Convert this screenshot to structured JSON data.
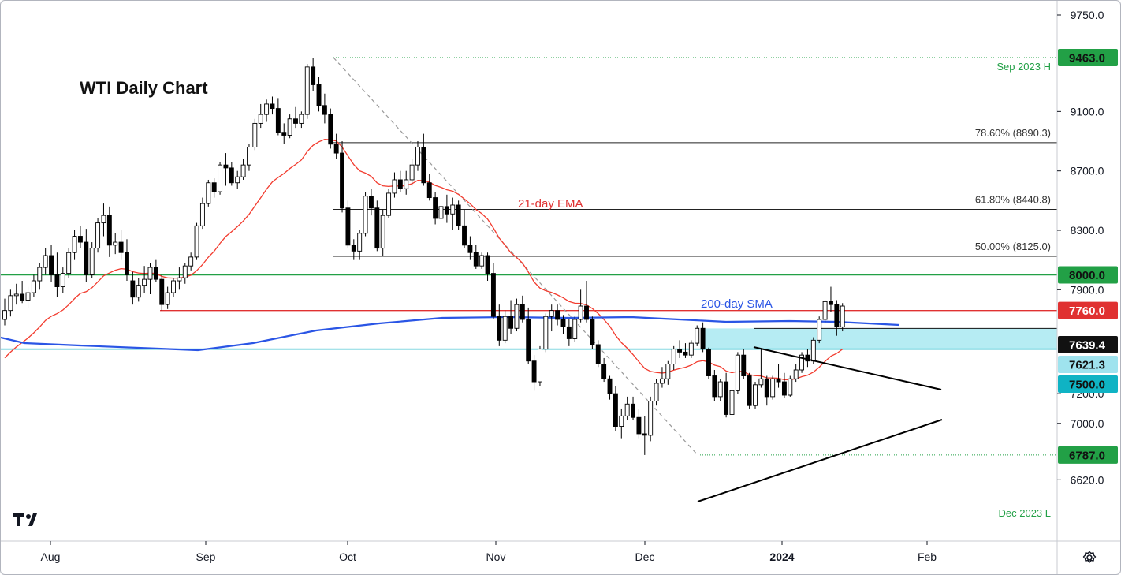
{
  "chart_data": {
    "type": "candlestick",
    "title": "WTI Daily Chart",
    "y_axis": {
      "range": [
        6520,
        9860
      ],
      "ticks": [
        9750.0,
        9100.0,
        8700.0,
        8300.0,
        7900.0,
        7200.0,
        7000.0,
        6620.0
      ]
    },
    "x_axis": {
      "ticks": [
        "Aug",
        "Sep",
        "Oct",
        "Nov",
        "Dec",
        "2024",
        "Feb"
      ]
    },
    "horizontal_levels": [
      {
        "value": 9463.0,
        "label": "9463.0",
        "note": "Sep 2023 H",
        "color": "#22a046"
      },
      {
        "value": 8000.0,
        "label": "8000.0",
        "color": "#22a046"
      },
      {
        "value": 7760.0,
        "label": "7760.0",
        "color": "#e03131"
      },
      {
        "value": 7639.4,
        "label": "7639.4",
        "color": "#111111"
      },
      {
        "value": 7621.3,
        "label": "7621.3",
        "color": "#9fe3ee"
      },
      {
        "value": 7500.0,
        "label": "7500.0",
        "color": "#0fb3c4"
      },
      {
        "value": 6787.0,
        "label": "6787.0",
        "note": "Dec 2023 L",
        "color": "#22a046"
      }
    ],
    "fibonacci": [
      {
        "label": "78.60% (8890.3)",
        "value": 8890.3
      },
      {
        "label": "61.80% (8440.8)",
        "value": 8440.8
      },
      {
        "label": "50.00% (8125.0)",
        "value": 8125.0
      }
    ],
    "annotations": [
      "21-day EMA",
      "200-day SMA"
    ],
    "series": [
      {
        "name": "WTI",
        "candles": [
          [
            7700,
            7840,
            7660,
            7760
          ],
          [
            7760,
            7900,
            7720,
            7860
          ],
          [
            7860,
            7940,
            7800,
            7870
          ],
          [
            7870,
            7960,
            7810,
            7830
          ],
          [
            7830,
            7920,
            7780,
            7880
          ],
          [
            7880,
            8000,
            7850,
            7960
          ],
          [
            7960,
            8080,
            7900,
            8050
          ],
          [
            8050,
            8180,
            8000,
            8130
          ],
          [
            8130,
            8200,
            7950,
            8000
          ],
          [
            8000,
            8150,
            7850,
            7920
          ],
          [
            7920,
            8050,
            7880,
            8010
          ],
          [
            8010,
            8180,
            7980,
            8150
          ],
          [
            8150,
            8300,
            8100,
            8260
          ],
          [
            8260,
            8330,
            8180,
            8220
          ],
          [
            8220,
            8310,
            7950,
            8000
          ],
          [
            8000,
            8220,
            7980,
            8180
          ],
          [
            8180,
            8380,
            8150,
            8350
          ],
          [
            8350,
            8480,
            8260,
            8400
          ],
          [
            8400,
            8460,
            8120,
            8200
          ],
          [
            8200,
            8280,
            8140,
            8220
          ],
          [
            8220,
            8300,
            8100,
            8150
          ],
          [
            8150,
            8240,
            7960,
            8000
          ],
          [
            7960,
            8020,
            7800,
            7850
          ],
          [
            7850,
            7980,
            7820,
            7930
          ],
          [
            7930,
            8060,
            7880,
            7970
          ],
          [
            7970,
            8080,
            7870,
            8050
          ],
          [
            8050,
            8100,
            7950,
            7970
          ],
          [
            7970,
            8000,
            7760,
            7800
          ],
          [
            7800,
            7920,
            7770,
            7880
          ],
          [
            7880,
            7980,
            7850,
            7960
          ],
          [
            7960,
            8050,
            7900,
            7980
          ],
          [
            7980,
            8080,
            7940,
            8060
          ],
          [
            8060,
            8150,
            8030,
            8120
          ],
          [
            8120,
            8350,
            8100,
            8330
          ],
          [
            8330,
            8520,
            8310,
            8480
          ],
          [
            8480,
            8640,
            8460,
            8620
          ],
          [
            8620,
            8650,
            8520,
            8560
          ],
          [
            8560,
            8760,
            8540,
            8740
          ],
          [
            8740,
            8820,
            8600,
            8720
          ],
          [
            8720,
            8760,
            8600,
            8620
          ],
          [
            8620,
            8700,
            8580,
            8660
          ],
          [
            8660,
            8780,
            8640,
            8740
          ],
          [
            8740,
            8880,
            8700,
            8860
          ],
          [
            8860,
            9050,
            8840,
            9020
          ],
          [
            9020,
            9150,
            8990,
            9080
          ],
          [
            9080,
            9180,
            9030,
            9150
          ],
          [
            9150,
            9200,
            9080,
            9120
          ],
          [
            9120,
            9190,
            8940,
            8960
          ],
          [
            8960,
            9020,
            8880,
            8940
          ],
          [
            8940,
            9080,
            8920,
            9050
          ],
          [
            9050,
            9130,
            8990,
            9020
          ],
          [
            9020,
            9100,
            8990,
            9080
          ],
          [
            9080,
            9420,
            9050,
            9400
          ],
          [
            9400,
            9463,
            9240,
            9280
          ],
          [
            9280,
            9330,
            9100,
            9140
          ],
          [
            9140,
            9220,
            9020,
            9080
          ],
          [
            9080,
            9120,
            8850,
            8880
          ],
          [
            8880,
            8950,
            8780,
            8820
          ],
          [
            8820,
            8900,
            8420,
            8450
          ],
          [
            8450,
            8500,
            8180,
            8200
          ],
          [
            8200,
            8240,
            8100,
            8160
          ],
          [
            8160,
            8300,
            8100,
            8280
          ],
          [
            8280,
            8560,
            8260,
            8530
          ],
          [
            8530,
            8580,
            8400,
            8450
          ],
          [
            8450,
            8500,
            8160,
            8180
          ],
          [
            8180,
            8440,
            8130,
            8400
          ],
          [
            8400,
            8580,
            8380,
            8550
          ],
          [
            8550,
            8690,
            8520,
            8640
          ],
          [
            8640,
            8700,
            8560,
            8580
          ],
          [
            8580,
            8700,
            8540,
            8640
          ],
          [
            8640,
            8780,
            8600,
            8740
          ],
          [
            8740,
            8900,
            8700,
            8860
          ],
          [
            8860,
            8950,
            8600,
            8620
          ],
          [
            8620,
            8680,
            8500,
            8520
          ],
          [
            8520,
            8560,
            8340,
            8380
          ],
          [
            8380,
            8500,
            8330,
            8460
          ],
          [
            8460,
            8540,
            8350,
            8410
          ],
          [
            8410,
            8520,
            8300,
            8470
          ],
          [
            8470,
            8500,
            8300,
            8330
          ],
          [
            8330,
            8440,
            8180,
            8200
          ],
          [
            8200,
            8260,
            8100,
            8150
          ],
          [
            8150,
            8200,
            8040,
            8060
          ],
          [
            8060,
            8150,
            8040,
            8130
          ],
          [
            8130,
            8150,
            7960,
            8010
          ],
          [
            8010,
            8080,
            7700,
            7720
          ],
          [
            7720,
            7800,
            7520,
            7560
          ],
          [
            7560,
            7760,
            7540,
            7720
          ],
          [
            7720,
            7830,
            7600,
            7640
          ],
          [
            7640,
            7840,
            7620,
            7800
          ],
          [
            7800,
            7860,
            7680,
            7700
          ],
          [
            7700,
            7780,
            7400,
            7420
          ],
          [
            7420,
            7460,
            7220,
            7280
          ],
          [
            7280,
            7520,
            7250,
            7500
          ],
          [
            7500,
            7740,
            7480,
            7720
          ],
          [
            7720,
            7800,
            7620,
            7760
          ],
          [
            7760,
            7800,
            7660,
            7700
          ],
          [
            7700,
            7730,
            7600,
            7650
          ],
          [
            7650,
            7700,
            7520,
            7570
          ],
          [
            7570,
            7720,
            7550,
            7700
          ],
          [
            7700,
            7900,
            7680,
            7790
          ],
          [
            7790,
            7960,
            7680,
            7700
          ],
          [
            7700,
            7720,
            7500,
            7530
          ],
          [
            7530,
            7560,
            7380,
            7400
          ],
          [
            7400,
            7440,
            7280,
            7300
          ],
          [
            7300,
            7320,
            7160,
            7200
          ],
          [
            7200,
            7250,
            6950,
            6980
          ],
          [
            6980,
            7100,
            6900,
            7050
          ],
          [
            7050,
            7180,
            7020,
            7130
          ],
          [
            7130,
            7180,
            7020,
            7040
          ],
          [
            7040,
            7100,
            6900,
            6930
          ],
          [
            6930,
            7050,
            6787,
            6920
          ],
          [
            6920,
            7180,
            6880,
            7150
          ],
          [
            7150,
            7300,
            7120,
            7270
          ],
          [
            7270,
            7380,
            7240,
            7300
          ],
          [
            7300,
            7420,
            7260,
            7400
          ],
          [
            7400,
            7520,
            7360,
            7500
          ],
          [
            7500,
            7560,
            7440,
            7480
          ],
          [
            7480,
            7540,
            7440,
            7460
          ],
          [
            7460,
            7560,
            7440,
            7540
          ],
          [
            7540,
            7660,
            7520,
            7640
          ],
          [
            7640,
            7680,
            7480,
            7500
          ],
          [
            7500,
            7510,
            7300,
            7320
          ],
          [
            7320,
            7360,
            7150,
            7180
          ],
          [
            7180,
            7300,
            7150,
            7280
          ],
          [
            7280,
            7340,
            7040,
            7060
          ],
          [
            7060,
            7250,
            7030,
            7220
          ],
          [
            7220,
            7480,
            7200,
            7460
          ],
          [
            7460,
            7500,
            7300,
            7320
          ],
          [
            7320,
            7340,
            7100,
            7120
          ],
          [
            7120,
            7280,
            7100,
            7260
          ],
          [
            7260,
            7500,
            7240,
            7300
          ],
          [
            7300,
            7320,
            7120,
            7180
          ],
          [
            7180,
            7320,
            7160,
            7300
          ],
          [
            7300,
            7400,
            7240,
            7280
          ],
          [
            7280,
            7340,
            7170,
            7190
          ],
          [
            7190,
            7320,
            7180,
            7300
          ],
          [
            7300,
            7400,
            7280,
            7360
          ],
          [
            7360,
            7480,
            7340,
            7460
          ],
          [
            7460,
            7500,
            7380,
            7420
          ],
          [
            7420,
            7580,
            7400,
            7560
          ],
          [
            7560,
            7720,
            7540,
            7700
          ],
          [
            7700,
            7830,
            7680,
            7820
          ],
          [
            7820,
            7920,
            7750,
            7800
          ],
          [
            7800,
            7830,
            7590,
            7650
          ],
          [
            7650,
            7810,
            7620,
            7790
          ]
        ]
      }
    ]
  }
}
